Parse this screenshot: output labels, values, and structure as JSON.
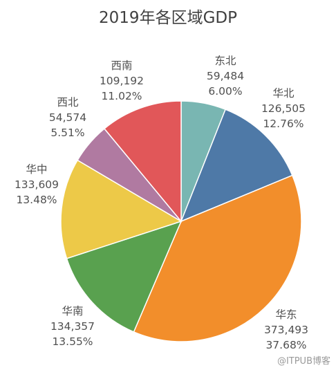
{
  "chart_data": {
    "type": "pie",
    "title": "2019年各区域GDP",
    "start_angle_deg": 0,
    "direction": "clockwise",
    "slices": [
      {
        "name": "东北",
        "value": "59,484",
        "percent": "6.00%",
        "numeric_value": 59484,
        "color": "#79b6b2"
      },
      {
        "name": "华北",
        "value": "126,505",
        "percent": "12.76%",
        "numeric_value": 126505,
        "color": "#4e79a7"
      },
      {
        "name": "华东",
        "value": "373,493",
        "percent": "37.68%",
        "numeric_value": 373493,
        "color": "#f28e2b"
      },
      {
        "name": "华南",
        "value": "134,357",
        "percent": "13.55%",
        "numeric_value": 134357,
        "color": "#59a14f"
      },
      {
        "name": "华中",
        "value": "133,609",
        "percent": "13.48%",
        "numeric_value": 133609,
        "color": "#edc948"
      },
      {
        "name": "西北",
        "value": "54,574",
        "percent": "5.51%",
        "numeric_value": 54574,
        "color": "#b07aa1"
      },
      {
        "name": "西南",
        "value": "109,192",
        "percent": "11.02%",
        "numeric_value": 109192,
        "color": "#e15759"
      }
    ]
  },
  "watermark": "@ITPUB博客"
}
